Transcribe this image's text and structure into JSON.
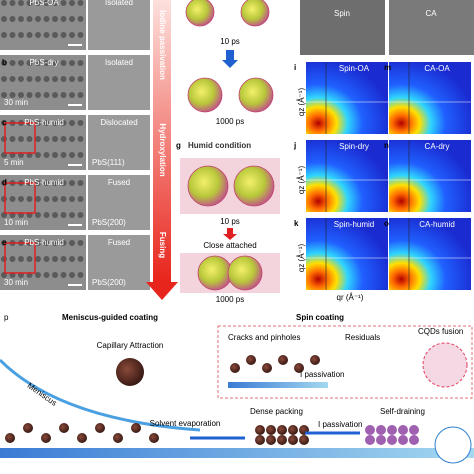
{
  "left_panels": [
    {
      "sample": "PbS-OA",
      "state": "Isolated"
    },
    {
      "letter": "b",
      "sample": "PbS-dry",
      "state": "Isolated",
      "time": "30 min"
    },
    {
      "letter": "c",
      "sample": "PbS-humid",
      "state": "Dislocated",
      "time": "5 min",
      "plane": "PbS(111)"
    },
    {
      "letter": "d",
      "sample": "PbS-humid",
      "state": "Fused",
      "time": "10 min",
      "plane": "PbS(200)"
    },
    {
      "letter": "e",
      "sample": "PbS-humid",
      "state": "Fused",
      "time": "30 min",
      "plane": "PbS(200)"
    }
  ],
  "process_arrow": [
    "Iodine passivation",
    "Hydroxylation",
    "Fusing"
  ],
  "simulation": {
    "dry_times": [
      "10 ps",
      "1000 ps"
    ],
    "humid": {
      "letter": "g",
      "title": "Humid condition",
      "times": [
        "10 ps",
        "1000 ps"
      ],
      "note": "Close attached"
    }
  },
  "giwaxs": {
    "columns": [
      "Spin",
      "CA"
    ],
    "panels": [
      {
        "letter": "i",
        "label": "Spin-OA"
      },
      {
        "letter": "m",
        "label": "CA-OA"
      },
      {
        "letter": "j",
        "label": "Spin-dry"
      },
      {
        "letter": "n",
        "label": "CA-dry"
      },
      {
        "letter": "k",
        "label": "Spin-humid"
      },
      {
        "letter": "o",
        "label": "CA-humid"
      }
    ],
    "y_label": "qz (Å⁻¹)",
    "x_label": "qr (Å⁻¹)"
  },
  "schematic": {
    "letter": "p",
    "left_title": "Meniscus-guided coating",
    "right_title": "Spin coating",
    "capillary": "Capillary Attraction",
    "meniscus": "Meniscus",
    "cracks": "Cracks and pinholes",
    "residuals": "Residuals",
    "fusion": "CQDs fusion",
    "passivation_top": "I passivation",
    "dense": "Dense packing",
    "solvent": "Solvent evaporation",
    "passivation_bottom": "I passivation",
    "draining": "Self-draining"
  }
}
